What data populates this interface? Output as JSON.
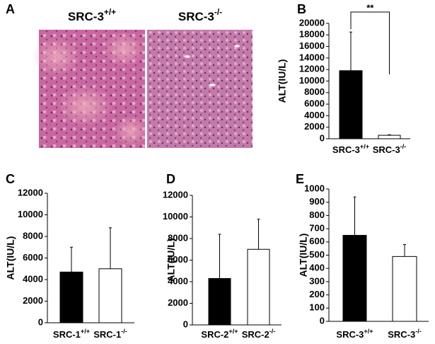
{
  "panel_a": {
    "label": "A",
    "images": [
      {
        "title": "SRC-3+/+"
      },
      {
        "title": "SRC-3-/-"
      }
    ]
  },
  "chart_data": [
    {
      "type": "bar",
      "label": "B",
      "y_label": "ALT(IU/L)",
      "categories": [
        "SRC-3+/+",
        "SRC-3-/-"
      ],
      "values": [
        11800,
        600
      ],
      "errors": [
        6700,
        100
      ],
      "colors": [
        "#000000",
        "#ffffff"
      ],
      "ylim": [
        0,
        20000
      ],
      "yticks": [
        0,
        2000,
        4000,
        6000,
        8000,
        10000,
        12000,
        14000,
        16000,
        18000,
        20000
      ],
      "annotation": "**"
    },
    {
      "type": "bar",
      "label": "C",
      "y_label": "ALT(IU/L)",
      "categories": [
        "SRC-1+/+",
        "SRC-1-/-"
      ],
      "values": [
        4700,
        5000
      ],
      "errors": [
        2300,
        3800
      ],
      "colors": [
        "#000000",
        "#ffffff"
      ],
      "ylim": [
        0,
        12000
      ],
      "yticks": [
        0,
        2000,
        4000,
        6000,
        8000,
        10000,
        12000
      ]
    },
    {
      "type": "bar",
      "label": "D",
      "y_label": "ALT(IU/L)",
      "categories": [
        "SRC-2+/+",
        "SRC-2-/-"
      ],
      "values": [
        4300,
        7000
      ],
      "errors": [
        4100,
        2800
      ],
      "colors": [
        "#000000",
        "#ffffff"
      ],
      "ylim": [
        0,
        12000
      ],
      "yticks": [
        0,
        2000,
        4000,
        6000,
        8000,
        10000,
        12000
      ]
    },
    {
      "type": "bar",
      "label": "E",
      "y_label": "ALT(IU/L)",
      "categories": [
        "SRC-3+/+",
        "SRC-3-/-"
      ],
      "values": [
        650,
        490
      ],
      "errors": [
        290,
        90
      ],
      "colors": [
        "#000000",
        "#ffffff"
      ],
      "ylim": [
        0,
        1000
      ],
      "yticks": [
        0,
        100,
        200,
        300,
        400,
        500,
        600,
        700,
        800,
        900,
        1000
      ]
    }
  ]
}
